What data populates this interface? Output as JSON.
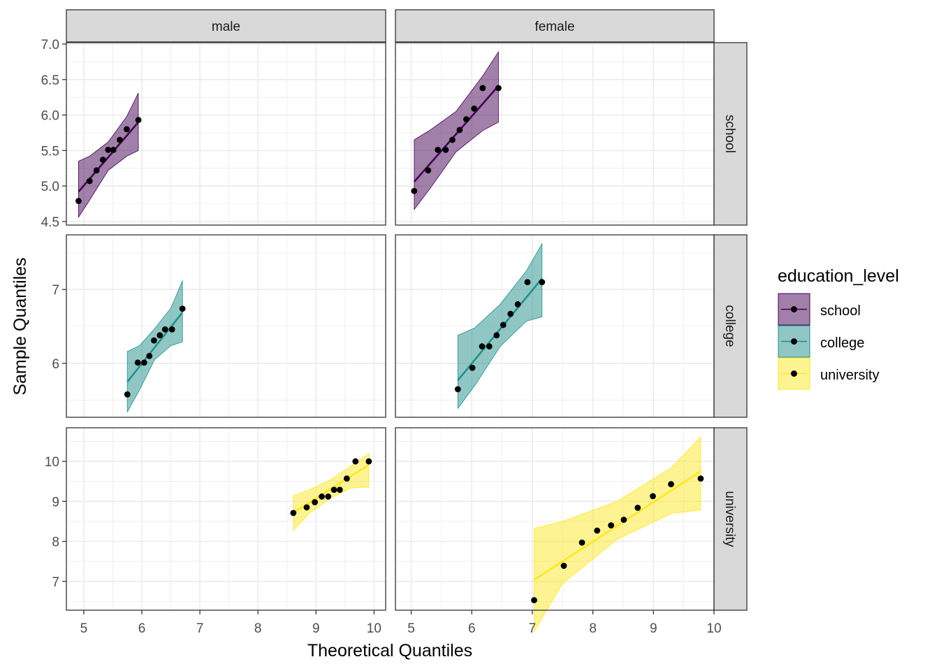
{
  "chart_data": {
    "type": "scatter",
    "subtype": "qq-plot-faceted",
    "xlabel": "Theoretical Quantiles",
    "ylabel": "Sample Quantiles",
    "facet_cols": [
      "male",
      "female"
    ],
    "facet_rows": [
      "school",
      "college",
      "university"
    ],
    "legend": {
      "title": "education_level",
      "position": "right",
      "entries": [
        {
          "label": "school",
          "color": "#440154"
        },
        {
          "label": "college",
          "color": "#21908C"
        },
        {
          "label": "university",
          "color": "#FDE725"
        }
      ]
    },
    "x_axes": [
      {
        "column": "male",
        "range": [
          4.7,
          10.2
        ],
        "ticks": [
          5,
          6,
          7,
          8,
          9,
          10
        ],
        "tick_labels": [
          "5",
          "6",
          "7",
          "8",
          "9",
          "10"
        ]
      },
      {
        "column": "female",
        "range": [
          4.74,
          10.0
        ],
        "ticks": [
          5,
          6,
          7,
          8,
          9,
          10
        ],
        "tick_labels": [
          "5",
          "6",
          "7",
          "8",
          "9",
          "10"
        ]
      }
    ],
    "y_axes": [
      {
        "row": "school",
        "range": [
          4.45,
          7.02
        ],
        "ticks": [
          4.5,
          5.0,
          5.5,
          6.0,
          6.5,
          7.0
        ],
        "tick_labels": [
          "4.5",
          "5.0",
          "5.5",
          "6.0",
          "6.5",
          "7.0"
        ]
      },
      {
        "row": "college",
        "range": [
          5.27,
          7.74
        ],
        "ticks": [
          6,
          7
        ],
        "tick_labels": [
          "6",
          "7"
        ]
      },
      {
        "row": "university",
        "range": [
          6.28,
          10.84
        ],
        "ticks": [
          7,
          8,
          9,
          10
        ],
        "tick_labels": [
          "7",
          "8",
          "9",
          "10"
        ]
      }
    ],
    "grid": true,
    "panels": [
      {
        "col": "male",
        "row": "school",
        "group": "school",
        "points": [
          [
            4.91,
            4.79
          ],
          [
            5.1,
            5.07
          ],
          [
            5.22,
            5.22
          ],
          [
            5.33,
            5.37
          ],
          [
            5.42,
            5.51
          ],
          [
            5.51,
            5.51
          ],
          [
            5.62,
            5.65
          ],
          [
            5.74,
            5.8
          ],
          [
            5.94,
            5.93
          ]
        ],
        "line": [
          [
            4.91,
            4.92
          ],
          [
            5.94,
            5.9
          ]
        ],
        "band": [
          [
            4.91,
            4.56,
            5.35
          ],
          [
            5.1,
            4.8,
            5.42
          ],
          [
            5.42,
            5.22,
            5.62
          ],
          [
            5.74,
            5.42,
            5.98
          ],
          [
            5.94,
            5.5,
            6.31
          ]
        ]
      },
      {
        "col": "female",
        "row": "school",
        "group": "school",
        "points": [
          [
            5.05,
            4.93
          ],
          [
            5.28,
            5.22
          ],
          [
            5.44,
            5.51
          ],
          [
            5.57,
            5.51
          ],
          [
            5.68,
            5.65
          ],
          [
            5.8,
            5.79
          ],
          [
            5.91,
            5.94
          ],
          [
            6.04,
            6.09
          ],
          [
            6.18,
            6.38
          ],
          [
            6.44,
            6.38
          ]
        ],
        "line": [
          [
            5.05,
            5.06
          ],
          [
            6.44,
            6.41
          ]
        ],
        "band": [
          [
            5.05,
            4.67,
            5.65
          ],
          [
            5.3,
            4.95,
            5.78
          ],
          [
            5.74,
            5.48,
            6.05
          ],
          [
            6.18,
            5.78,
            6.55
          ],
          [
            6.44,
            5.9,
            6.89
          ]
        ]
      },
      {
        "col": "male",
        "row": "college",
        "group": "college",
        "points": [
          [
            5.75,
            5.58
          ],
          [
            5.93,
            6.01
          ],
          [
            6.04,
            6.01
          ],
          [
            6.13,
            6.1
          ],
          [
            6.21,
            6.31
          ],
          [
            6.31,
            6.38
          ],
          [
            6.4,
            6.46
          ],
          [
            6.52,
            6.46
          ],
          [
            6.7,
            6.74
          ]
        ],
        "line": [
          [
            5.75,
            5.75
          ],
          [
            6.7,
            6.69
          ]
        ],
        "band": [
          [
            5.75,
            5.34,
            6.16
          ],
          [
            5.96,
            5.64,
            6.24
          ],
          [
            6.22,
            6.05,
            6.47
          ],
          [
            6.5,
            6.24,
            6.75
          ],
          [
            6.7,
            6.29,
            7.12
          ]
        ]
      },
      {
        "col": "female",
        "row": "college",
        "group": "college",
        "points": [
          [
            5.77,
            5.65
          ],
          [
            6.01,
            5.94
          ],
          [
            6.17,
            6.23
          ],
          [
            6.29,
            6.23
          ],
          [
            6.41,
            6.38
          ],
          [
            6.52,
            6.52
          ],
          [
            6.64,
            6.67
          ],
          [
            6.76,
            6.8
          ],
          [
            6.92,
            7.1
          ],
          [
            7.16,
            7.1
          ]
        ],
        "line": [
          [
            5.77,
            5.77
          ],
          [
            7.16,
            7.15
          ]
        ],
        "band": [
          [
            5.77,
            5.39,
            6.38
          ],
          [
            6.05,
            5.7,
            6.48
          ],
          [
            6.47,
            6.23,
            6.8
          ],
          [
            6.9,
            6.57,
            7.25
          ],
          [
            7.16,
            6.63,
            7.62
          ]
        ]
      },
      {
        "col": "male",
        "row": "university",
        "group": "university",
        "points": [
          [
            8.61,
            8.71
          ],
          [
            8.84,
            8.85
          ],
          [
            8.98,
            8.98
          ],
          [
            9.1,
            9.12
          ],
          [
            9.21,
            9.12
          ],
          [
            9.31,
            9.29
          ],
          [
            9.41,
            9.29
          ],
          [
            9.53,
            9.57
          ],
          [
            9.68,
            10.0
          ],
          [
            9.91,
            10.0
          ]
        ],
        "line": [
          [
            8.61,
            8.72
          ],
          [
            9.91,
            9.91
          ]
        ],
        "band": [
          [
            8.61,
            8.28,
            9.14
          ],
          [
            8.9,
            8.72,
            9.3
          ],
          [
            9.26,
            9.08,
            9.55
          ],
          [
            9.6,
            9.33,
            9.88
          ],
          [
            9.91,
            9.36,
            10.2
          ]
        ]
      },
      {
        "col": "female",
        "row": "university",
        "group": "university",
        "points": [
          [
            7.03,
            6.53
          ],
          [
            7.52,
            7.39
          ],
          [
            7.82,
            7.97
          ],
          [
            8.07,
            8.27
          ],
          [
            8.3,
            8.4
          ],
          [
            8.51,
            8.54
          ],
          [
            8.74,
            8.84
          ],
          [
            8.99,
            9.13
          ],
          [
            9.29,
            9.43
          ],
          [
            9.78,
            9.57
          ]
        ],
        "line": [
          [
            7.03,
            7.04
          ],
          [
            9.78,
            9.75
          ]
        ],
        "band": [
          [
            7.03,
            5.75,
            8.32
          ],
          [
            7.5,
            6.95,
            8.5
          ],
          [
            8.4,
            8.05,
            9.0
          ],
          [
            9.3,
            8.7,
            9.85
          ],
          [
            9.78,
            8.78,
            10.61
          ]
        ]
      }
    ]
  }
}
